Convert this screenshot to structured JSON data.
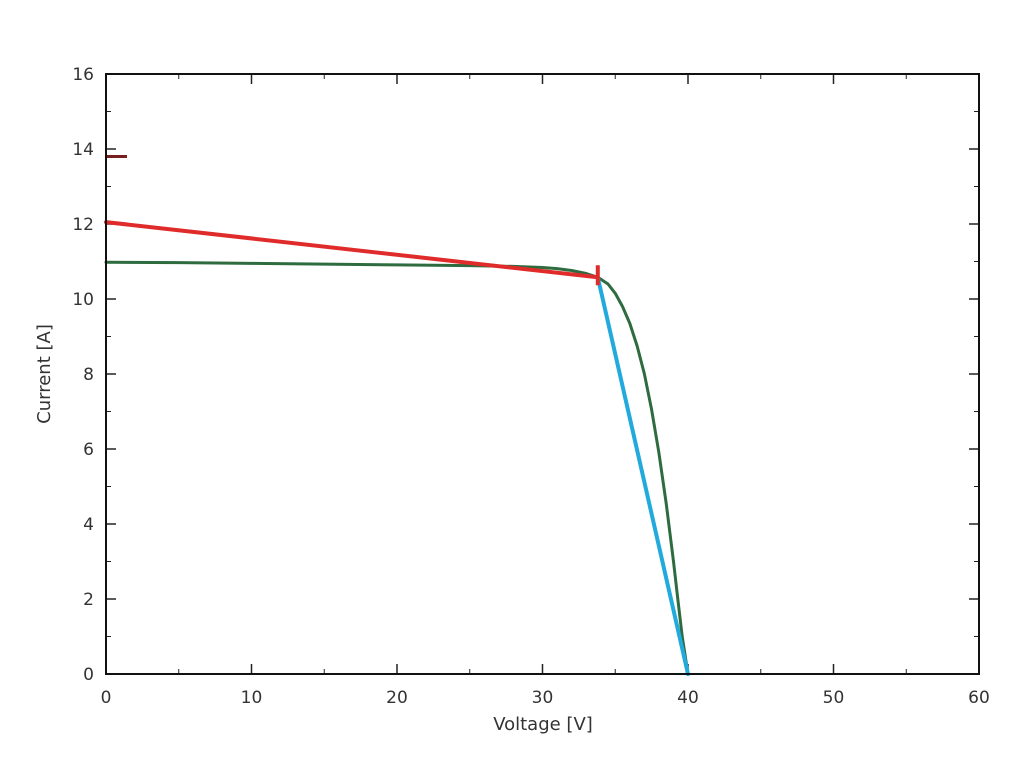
{
  "chart_data": {
    "type": "line",
    "title": "",
    "xlabel": "Voltage [V]",
    "ylabel": "Current [A]",
    "xlim": [
      0,
      60
    ],
    "ylim": [
      0,
      16
    ],
    "x_ticks": [
      "0",
      "10",
      "20",
      "30",
      "40",
      "50",
      "60"
    ],
    "y_ticks": [
      "0",
      "2",
      "4",
      "6",
      "8",
      "10",
      "12",
      "14",
      "16"
    ],
    "x_minor_step": 5,
    "y_minor_step": 1,
    "grid": false,
    "legend": "none",
    "series": [
      {
        "color": "#2e6b3f",
        "x": [
          0,
          5,
          10,
          15,
          20,
          25,
          28,
          30,
          31,
          32,
          33,
          33.8,
          34.5,
          35,
          35.5,
          36,
          36.5,
          37,
          37.5,
          38,
          38.5,
          39,
          39.3,
          39.6,
          40.0
        ],
        "y": [
          10.98,
          10.97,
          10.95,
          10.93,
          10.91,
          10.89,
          10.87,
          10.84,
          10.81,
          10.76,
          10.68,
          10.58,
          10.4,
          10.15,
          9.8,
          9.35,
          8.75,
          8.0,
          7.05,
          5.9,
          4.55,
          3.0,
          2.0,
          1.0,
          0
        ]
      },
      {
        "color": "#e02b2b",
        "x": [
          0,
          33.8
        ],
        "y": [
          12.05,
          10.58
        ]
      },
      {
        "color": "#22aadd",
        "x": [
          33.8,
          40.0
        ],
        "y": [
          10.58,
          0
        ]
      }
    ],
    "markers": [
      {
        "color": "#e02b2b",
        "x": 33.8,
        "y": 10.58
      },
      {
        "color": "#7a1f1f",
        "x": 0.6,
        "y": 13.8
      }
    ]
  }
}
